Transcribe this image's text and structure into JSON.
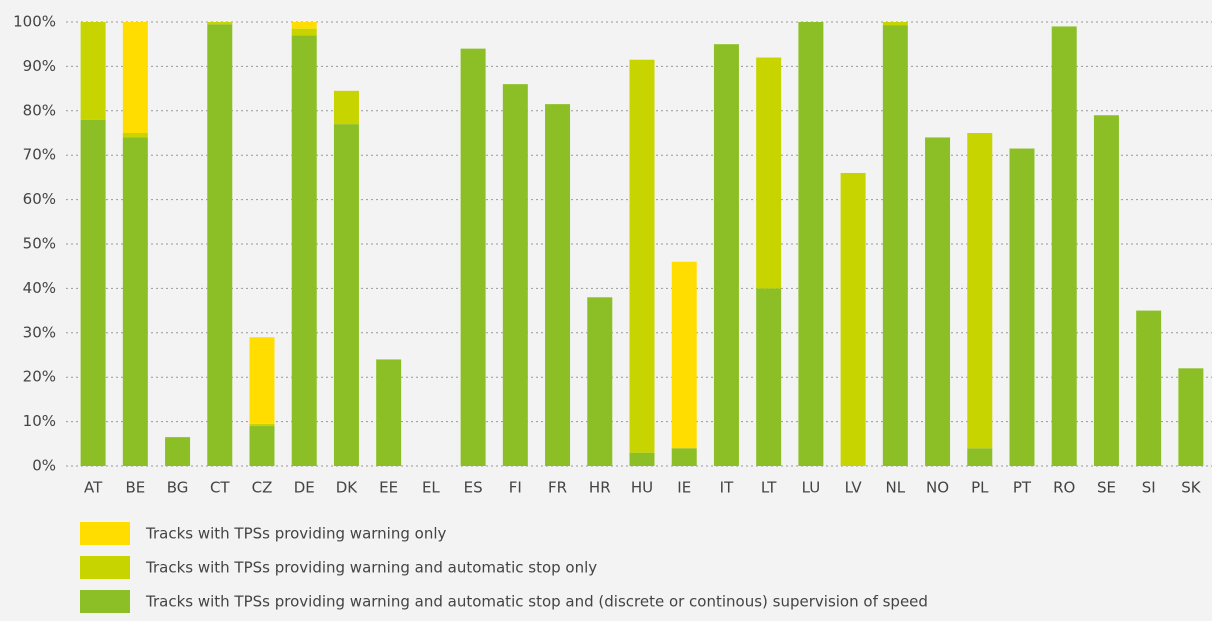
{
  "chart_data": {
    "type": "stacked_bar",
    "categories": [
      "AT",
      "BE",
      "BG",
      "CT",
      "CZ",
      "DE",
      "DK",
      "EE",
      "EL",
      "ES",
      "FI",
      "FR",
      "HR",
      "HU",
      "IE",
      "IT",
      "LT",
      "LU",
      "LV",
      "NL",
      "NO",
      "PL",
      "PT",
      "RO",
      "SE",
      "SI",
      "SK"
    ],
    "series": [
      {
        "name": "Tracks with TPSs providing warning only",
        "color": "#ffdd00",
        "values": [
          0,
          25,
          0,
          0,
          19.5,
          1.5,
          0,
          0,
          0,
          0,
          0,
          0,
          0,
          0,
          42,
          0,
          0,
          0,
          0,
          0,
          0,
          0,
          0,
          0,
          0,
          0,
          0
        ]
      },
      {
        "name": "Tracks with TPSs providing warning and automatic stop only",
        "color": "#c8d400",
        "values": [
          22,
          1,
          0,
          0.5,
          0.5,
          1.5,
          7.5,
          0,
          0,
          0,
          0,
          0,
          0,
          88.5,
          0,
          0,
          52,
          0,
          66,
          0.7,
          0,
          71,
          0,
          0,
          0,
          0,
          0
        ]
      },
      {
        "name": "Tracks with TPSs providing warning and automatic stop and (discrete or continous) supervision of speed",
        "color": "#8cbf26",
        "values": [
          78,
          74,
          6.5,
          99.5,
          9,
          97,
          77,
          24,
          0,
          94,
          86,
          81.5,
          38,
          3,
          4,
          95,
          40,
          100,
          0,
          99.3,
          74,
          4,
          71.5,
          99,
          79,
          35,
          22
        ]
      }
    ],
    "ylim": [
      0,
      100
    ],
    "yticks": [
      {
        "value": 0,
        "label": "0%"
      },
      {
        "value": 10,
        "label": "10%"
      },
      {
        "value": 20,
        "label": "20%"
      },
      {
        "value": 30,
        "label": "30%"
      },
      {
        "value": 40,
        "label": "40%"
      },
      {
        "value": 50,
        "label": "50%"
      },
      {
        "value": 60,
        "label": "60%"
      },
      {
        "value": 70,
        "label": "70%"
      },
      {
        "value": 80,
        "label": "80%"
      },
      {
        "value": 90,
        "label": "90%"
      },
      {
        "value": 100,
        "label": "100%"
      }
    ],
    "grid": true
  }
}
